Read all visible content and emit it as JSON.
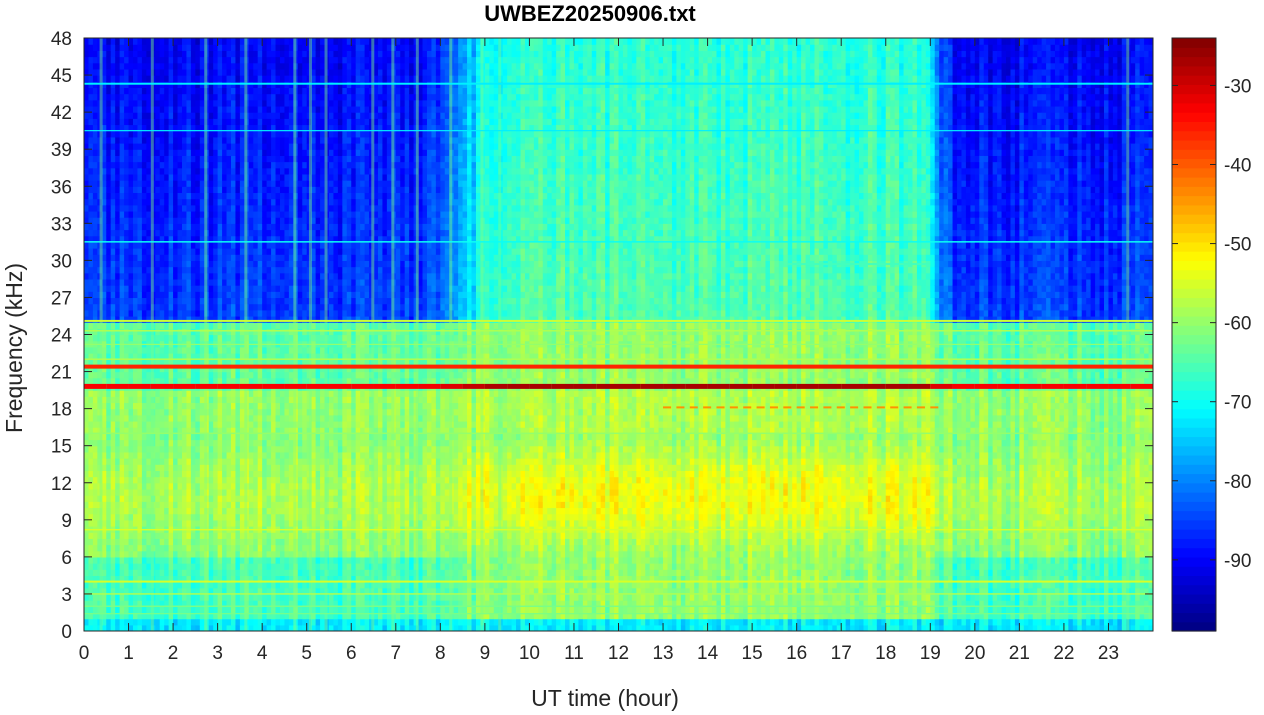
{
  "chart_data": {
    "type": "heatmap",
    "title": "UWBEZ20250906.txt",
    "xlabel": "UT time (hour)",
    "ylabel": "Frequency (kHz)",
    "xlim": [
      0,
      24
    ],
    "ylim": [
      0,
      48
    ],
    "x_ticks": [
      0,
      1,
      2,
      3,
      4,
      5,
      6,
      7,
      8,
      9,
      10,
      11,
      12,
      13,
      14,
      15,
      16,
      17,
      18,
      19,
      20,
      21,
      22,
      23
    ],
    "x_tick_labels": [
      "0",
      "1",
      "2",
      "3",
      "4",
      "5",
      "6",
      "7",
      "8",
      "9",
      "10",
      "11",
      "12",
      "13",
      "14",
      "15",
      "16",
      "17",
      "18",
      "19",
      "20",
      "21",
      "22",
      "23"
    ],
    "y_ticks": [
      0,
      3,
      6,
      9,
      12,
      15,
      18,
      21,
      24,
      27,
      30,
      33,
      36,
      39,
      42,
      45,
      48
    ],
    "y_tick_labels": [
      "0",
      "3",
      "6",
      "9",
      "12",
      "15",
      "18",
      "21",
      "24",
      "27",
      "30",
      "33",
      "36",
      "39",
      "42",
      "45",
      "48"
    ],
    "colormap": "jet",
    "colorbar": {
      "clim": [
        -99,
        -24
      ],
      "ticks": [
        -90,
        -80,
        -70,
        -60,
        -50,
        -40,
        -30
      ],
      "tick_labels": [
        "-90",
        "-80",
        "-70",
        "-60",
        "-50",
        "-40",
        "-30"
      ]
    },
    "grid": false,
    "features": {
      "strong_transmitter_khz": 19.8,
      "secondary_transmitter_khz": 21.4,
      "daytime_enhancement_hours": [
        9.2,
        19.0
      ],
      "daytime_peak_band_khz": [
        6,
        16
      ]
    }
  }
}
